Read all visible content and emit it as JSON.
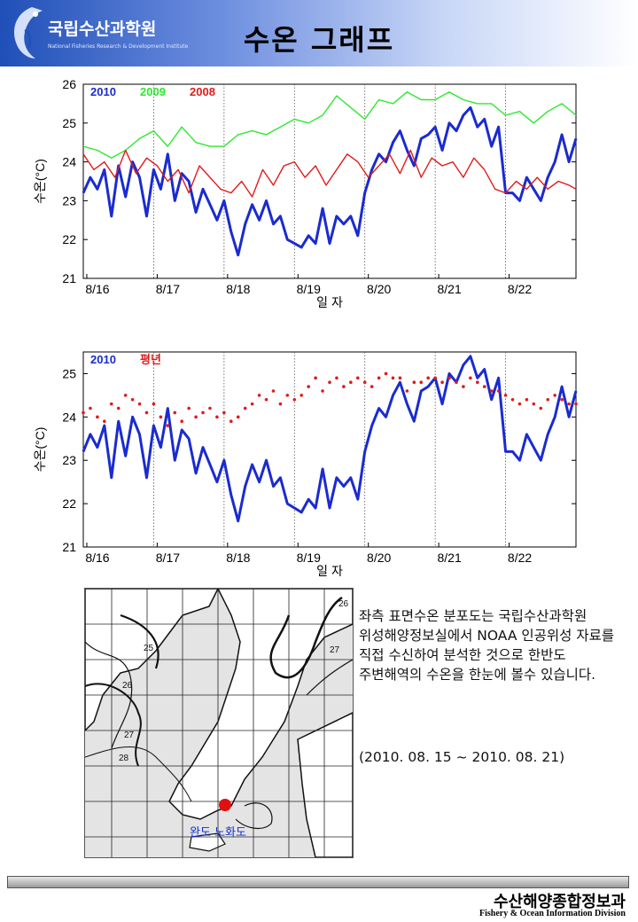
{
  "header": {
    "org_name": "국립수산과학원",
    "org_subtitle": "National Fisheries Research & Development Institute",
    "page_title": "수온 그래프"
  },
  "colors": {
    "series_2010": "#1a2bd0",
    "series_2009": "#2ee82e",
    "series_2008": "#e01b1b",
    "normal": "#e01b1b"
  },
  "chart_data": [
    {
      "type": "line",
      "ylabel": "수온(°C)",
      "xlabel": "일 자",
      "ylim": [
        21,
        26
      ],
      "yticks": [
        21,
        22,
        23,
        24,
        25,
        26
      ],
      "xlim": [
        15.95,
        22.95
      ],
      "xticks": [
        {
          "x": 16,
          "label": "8/16"
        },
        {
          "x": 17,
          "label": "8/17"
        },
        {
          "x": 18,
          "label": "8/18"
        },
        {
          "x": 19,
          "label": "8/19"
        },
        {
          "x": 20,
          "label": "8/20"
        },
        {
          "x": 21,
          "label": "8/21"
        },
        {
          "x": 22,
          "label": "8/22"
        }
      ],
      "vlines": [
        16.95,
        17.95,
        18.95,
        19.95,
        20.95,
        21.95
      ],
      "series": [
        {
          "name": "2010",
          "color": "#1a2bd0",
          "x": [
            15.95,
            16.05,
            16.15,
            16.25,
            16.35,
            16.45,
            16.55,
            16.65,
            16.75,
            16.85,
            16.95,
            17.05,
            17.15,
            17.25,
            17.35,
            17.45,
            17.55,
            17.65,
            17.75,
            17.85,
            17.95,
            18.05,
            18.15,
            18.25,
            18.35,
            18.45,
            18.55,
            18.65,
            18.75,
            18.85,
            18.95,
            19.05,
            19.15,
            19.25,
            19.35,
            19.45,
            19.55,
            19.65,
            19.75,
            19.85,
            19.95,
            20.05,
            20.15,
            20.25,
            20.35,
            20.45,
            20.55,
            20.65,
            20.75,
            20.85,
            20.95,
            21.05,
            21.15,
            21.25,
            21.35,
            21.45,
            21.55,
            21.65,
            21.75,
            21.85,
            21.95,
            22.05,
            22.15,
            22.25,
            22.35,
            22.45,
            22.55,
            22.65,
            22.75,
            22.85,
            22.95
          ],
          "values": [
            23.2,
            23.6,
            23.3,
            23.8,
            22.6,
            23.9,
            23.1,
            24.0,
            23.6,
            22.6,
            23.8,
            23.3,
            24.2,
            23.0,
            23.7,
            23.5,
            22.7,
            23.3,
            22.9,
            22.5,
            23.0,
            22.2,
            21.6,
            22.4,
            22.9,
            22.5,
            23.0,
            22.4,
            22.6,
            22.0,
            21.9,
            21.8,
            22.1,
            21.9,
            22.8,
            21.9,
            22.6,
            22.4,
            22.6,
            22.1,
            23.2,
            23.8,
            24.2,
            24.0,
            24.5,
            24.8,
            24.3,
            23.9,
            24.6,
            24.7,
            24.9,
            24.3,
            25.0,
            24.8,
            25.2,
            25.4,
            24.9,
            25.1,
            24.4,
            24.9,
            23.2,
            23.2,
            23.0,
            23.6,
            23.3,
            23.0,
            23.6,
            24.0,
            24.7,
            24.0,
            24.6
          ]
        },
        {
          "name": "2009",
          "color": "#2ee82e",
          "x": [
            15.95,
            16.15,
            16.35,
            16.55,
            16.75,
            16.95,
            17.15,
            17.35,
            17.55,
            17.75,
            17.95,
            18.15,
            18.35,
            18.55,
            18.75,
            18.95,
            19.15,
            19.35,
            19.55,
            19.75,
            19.95,
            20.15,
            20.35,
            20.55,
            20.75,
            20.95,
            21.15,
            21.35,
            21.55,
            21.75,
            21.95,
            22.15,
            22.35,
            22.55,
            22.75,
            22.95
          ],
          "values": [
            24.4,
            24.3,
            24.1,
            24.3,
            24.6,
            24.8,
            24.4,
            24.9,
            24.5,
            24.4,
            24.4,
            24.7,
            24.8,
            24.7,
            24.9,
            25.1,
            25.0,
            25.2,
            25.7,
            25.4,
            25.1,
            25.6,
            25.5,
            25.8,
            25.6,
            25.6,
            25.8,
            25.6,
            25.5,
            25.5,
            25.2,
            25.3,
            25.0,
            25.3,
            25.5,
            25.2
          ]
        },
        {
          "name": "2008",
          "color": "#e01b1b",
          "x": [
            15.95,
            16.1,
            16.25,
            16.4,
            16.55,
            16.7,
            16.85,
            17.0,
            17.15,
            17.3,
            17.45,
            17.6,
            17.75,
            17.9,
            18.05,
            18.2,
            18.35,
            18.5,
            18.65,
            18.8,
            18.95,
            19.1,
            19.25,
            19.4,
            19.55,
            19.7,
            19.85,
            20.0,
            20.15,
            20.3,
            20.45,
            20.6,
            20.75,
            20.9,
            21.05,
            21.2,
            21.35,
            21.5,
            21.65,
            21.8,
            21.95,
            22.1,
            22.25,
            22.4,
            22.55,
            22.7,
            22.85,
            22.95
          ],
          "values": [
            24.2,
            23.8,
            24.0,
            23.6,
            24.3,
            23.7,
            24.1,
            23.9,
            23.5,
            23.8,
            23.2,
            23.9,
            23.6,
            23.3,
            23.2,
            23.5,
            23.1,
            23.8,
            23.4,
            23.9,
            24.0,
            23.6,
            23.9,
            23.4,
            23.8,
            24.2,
            24.0,
            23.6,
            23.9,
            24.2,
            23.7,
            24.3,
            23.6,
            24.1,
            23.9,
            24.0,
            23.6,
            24.1,
            23.8,
            23.3,
            23.2,
            23.5,
            23.3,
            23.6,
            23.3,
            23.5,
            23.4,
            23.3
          ]
        }
      ]
    },
    {
      "type": "line",
      "ylabel": "수온(°C)",
      "xlabel": "일 자",
      "ylim": [
        21,
        25.5
      ],
      "yticks": [
        21,
        22,
        23,
        24,
        25
      ],
      "xlim": [
        15.95,
        22.95
      ],
      "xticks": [
        {
          "x": 16,
          "label": "8/16"
        },
        {
          "x": 17,
          "label": "8/17"
        },
        {
          "x": 18,
          "label": "8/18"
        },
        {
          "x": 19,
          "label": "8/19"
        },
        {
          "x": 20,
          "label": "8/20"
        },
        {
          "x": 21,
          "label": "8/21"
        },
        {
          "x": 22,
          "label": "8/22"
        }
      ],
      "vlines": [
        16.95,
        17.95,
        18.95,
        19.95,
        20.95,
        21.95
      ],
      "series": [
        {
          "name": "2010",
          "color": "#1a2bd0",
          "style": "line",
          "x": [
            15.95,
            16.05,
            16.15,
            16.25,
            16.35,
            16.45,
            16.55,
            16.65,
            16.75,
            16.85,
            16.95,
            17.05,
            17.15,
            17.25,
            17.35,
            17.45,
            17.55,
            17.65,
            17.75,
            17.85,
            17.95,
            18.05,
            18.15,
            18.25,
            18.35,
            18.45,
            18.55,
            18.65,
            18.75,
            18.85,
            18.95,
            19.05,
            19.15,
            19.25,
            19.35,
            19.45,
            19.55,
            19.65,
            19.75,
            19.85,
            19.95,
            20.05,
            20.15,
            20.25,
            20.35,
            20.45,
            20.55,
            20.65,
            20.75,
            20.85,
            20.95,
            21.05,
            21.15,
            21.25,
            21.35,
            21.45,
            21.55,
            21.65,
            21.75,
            21.85,
            21.95,
            22.05,
            22.15,
            22.25,
            22.35,
            22.45,
            22.55,
            22.65,
            22.75,
            22.85,
            22.95
          ],
          "values": [
            23.2,
            23.6,
            23.3,
            23.8,
            22.6,
            23.9,
            23.1,
            24.0,
            23.6,
            22.6,
            23.8,
            23.3,
            24.2,
            23.0,
            23.7,
            23.5,
            22.7,
            23.3,
            22.9,
            22.5,
            23.0,
            22.2,
            21.6,
            22.4,
            22.9,
            22.5,
            23.0,
            22.4,
            22.6,
            22.0,
            21.9,
            21.8,
            22.1,
            21.9,
            22.8,
            21.9,
            22.6,
            22.4,
            22.6,
            22.1,
            23.2,
            23.8,
            24.2,
            24.0,
            24.5,
            24.8,
            24.3,
            23.9,
            24.6,
            24.7,
            24.9,
            24.3,
            25.0,
            24.8,
            25.2,
            25.4,
            24.9,
            25.1,
            24.4,
            24.9,
            23.2,
            23.2,
            23.0,
            23.6,
            23.3,
            23.0,
            23.6,
            24.0,
            24.7,
            24.0,
            24.6
          ]
        },
        {
          "name": "평년",
          "color": "#e01b1b",
          "style": "dots",
          "x": [
            15.95,
            16.05,
            16.15,
            16.25,
            16.35,
            16.45,
            16.55,
            16.65,
            16.75,
            16.85,
            16.95,
            17.05,
            17.15,
            17.25,
            17.35,
            17.45,
            17.55,
            17.65,
            17.75,
            17.85,
            17.95,
            18.05,
            18.15,
            18.25,
            18.35,
            18.45,
            18.55,
            18.65,
            18.75,
            18.85,
            18.95,
            19.05,
            19.15,
            19.25,
            19.35,
            19.45,
            19.55,
            19.65,
            19.75,
            19.85,
            19.95,
            20.05,
            20.15,
            20.25,
            20.35,
            20.45,
            20.55,
            20.65,
            20.75,
            20.85,
            20.95,
            21.05,
            21.15,
            21.25,
            21.35,
            21.45,
            21.55,
            21.65,
            21.75,
            21.85,
            21.95,
            22.05,
            22.15,
            22.25,
            22.35,
            22.45,
            22.55,
            22.65,
            22.75,
            22.85,
            22.95
          ],
          "values": [
            24.1,
            24.2,
            24.0,
            23.9,
            24.3,
            24.2,
            24.5,
            24.4,
            24.3,
            24.1,
            24.3,
            24.0,
            23.8,
            24.1,
            23.9,
            24.2,
            24.0,
            24.1,
            24.2,
            24.0,
            24.1,
            23.9,
            24.0,
            24.2,
            24.3,
            24.5,
            24.4,
            24.6,
            24.3,
            24.5,
            24.4,
            24.5,
            24.7,
            24.9,
            24.6,
            24.8,
            24.9,
            24.7,
            24.8,
            24.9,
            24.8,
            24.7,
            24.9,
            25.0,
            24.9,
            24.9,
            24.6,
            24.8,
            24.8,
            24.9,
            24.9,
            24.8,
            24.9,
            24.8,
            24.7,
            24.9,
            24.8,
            24.7,
            24.6,
            24.6,
            24.5,
            24.4,
            24.3,
            24.4,
            24.3,
            24.2,
            24.4,
            24.5,
            24.4,
            24.3,
            24.3
          ]
        }
      ]
    }
  ],
  "map": {
    "contour_labels": [
      "26",
      "27",
      "25",
      "26",
      "27",
      "28"
    ],
    "place_label": "완도 노화도"
  },
  "description": {
    "text": "좌측 표면수온 분포도는 국립수산과학원 위성해양정보실에서 NOAA 인공위성 자료를 직접 수신하여 분석한 것으로 한반도 주변해역의 수온을 한눈에 볼수 있습니다.",
    "period": "(2010. 08. 15 ~ 2010. 08. 21)"
  },
  "footer": {
    "title": "수산해양종합정보과",
    "subtitle": "Fishery & Ocean Information Division"
  }
}
